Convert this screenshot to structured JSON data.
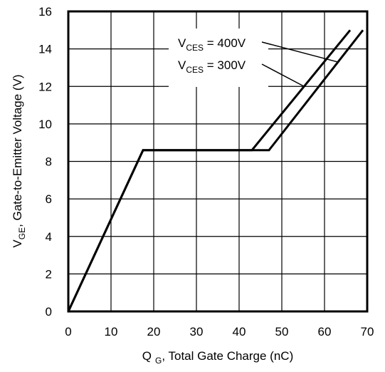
{
  "chart_data": {
    "type": "line",
    "xlabel": {
      "main": "Q",
      "sub": "G",
      "rest": ", Total Gate Charge (nC)"
    },
    "ylabel": {
      "main": "V",
      "sub": "GE",
      "rest": ", Gate-to-Emitter Voltage (V)"
    },
    "xlim": [
      0,
      70
    ],
    "ylim": [
      0,
      16
    ],
    "x_ticks": [
      0,
      10,
      20,
      30,
      40,
      50,
      60,
      70
    ],
    "y_ticks": [
      0,
      2,
      4,
      6,
      8,
      10,
      12,
      14,
      16
    ],
    "grid": true,
    "series": [
      {
        "name": "V_CES = 400V",
        "label_main": "V",
        "label_sub": "CES",
        "label_rest": " = 400V",
        "x": [
          0,
          17.5,
          47,
          69
        ],
        "y": [
          0,
          8.6,
          8.6,
          15
        ]
      },
      {
        "name": "V_CES = 300V",
        "label_main": "V",
        "label_sub": "CES",
        "label_rest": " = 300V",
        "x": [
          0,
          17.5,
          43,
          66
        ],
        "y": [
          0,
          8.6,
          8.6,
          15
        ]
      }
    ]
  }
}
